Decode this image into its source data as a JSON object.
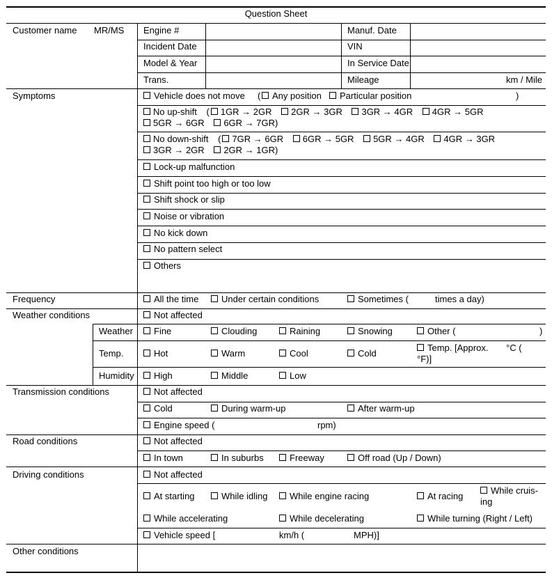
{
  "title": "Question Sheet",
  "header": {
    "customer_name": "Customer name",
    "mr_ms": "MR/MS",
    "engine": "Engine #",
    "incident_date": "Incident Date",
    "model_year": "Model & Year",
    "trans": "Trans.",
    "manuf_date": "Manuf. Date",
    "vin": "VIN",
    "in_service_date": "In Service Date",
    "mileage": "Mileage",
    "mileage_unit": "km / Mile"
  },
  "symptoms": {
    "label": "Symptoms",
    "not_move": "Vehicle does not move",
    "not_move_open": "(",
    "any_position": "Any position",
    "particular_position": "Particular position",
    "close": ")",
    "no_upshift": "No up-shift",
    "upshift": [
      "1GR → 2GR",
      "2GR → 3GR",
      "3GR → 4GR",
      "4GR → 5GR",
      "5GR → 6GR",
      "6GR → 7GR)"
    ],
    "no_downshift": "No down-shift",
    "downshift": [
      "7GR → 6GR",
      "6GR → 5GR",
      "5GR → 4GR",
      "4GR → 3GR",
      "3GR → 2GR",
      "2GR → 1GR)"
    ],
    "items": [
      "Lock-up malfunction",
      "Shift point too high or too low",
      "Shift shock or slip",
      "Noise or vibration",
      "No kick down",
      "No pattern select",
      "Others"
    ]
  },
  "frequency": {
    "label": "Frequency",
    "all_time": "All the time",
    "certain": "Under certain conditions",
    "sometimes": "Sometimes (",
    "times_a_day": "times a day)"
  },
  "weather": {
    "label": "Weather conditions",
    "not_affected": "Not affected",
    "weather_label": "Weather",
    "weather_opts": [
      "Fine",
      "Clouding",
      "Raining",
      "Snowing",
      "Other ("
    ],
    "close": ")",
    "temp_label": "Temp.",
    "temp_opts": [
      "Hot",
      "Warm",
      "Cool",
      "Cold"
    ],
    "temp_approx": "Temp. [Approx.",
    "deg_c": "°C (",
    "deg_f": "°F)]",
    "humidity_label": "Humidity",
    "humidity_opts": [
      "High",
      "Middle",
      "Low"
    ]
  },
  "transmission": {
    "label": "Transmission conditions",
    "not_affected": "Not affected",
    "cold": "Cold",
    "warm_up": "During warm-up",
    "after_warm_up": "After warm-up",
    "engine_speed": "Engine speed (",
    "rpm": "rpm)"
  },
  "road": {
    "label": "Road conditions",
    "not_affected": "Not affected",
    "opts": [
      "In town",
      "In suburbs",
      "Freeway",
      "Off road (Up / Down)"
    ]
  },
  "driving": {
    "label": "Driving conditions",
    "not_affected": "Not affected",
    "row1": [
      "At starting",
      "While idling",
      "While engine racing",
      "At racing"
    ],
    "cruising_1": "While cruis-",
    "cruising_2": "ing",
    "row2": [
      "While accelerating",
      "While decelerating",
      "While turning (Right / Left)"
    ],
    "vehicle_speed": "Vehicle speed [",
    "kmh": "km/h (",
    "mph": "MPH)]"
  },
  "other": {
    "label": "Other conditions"
  }
}
